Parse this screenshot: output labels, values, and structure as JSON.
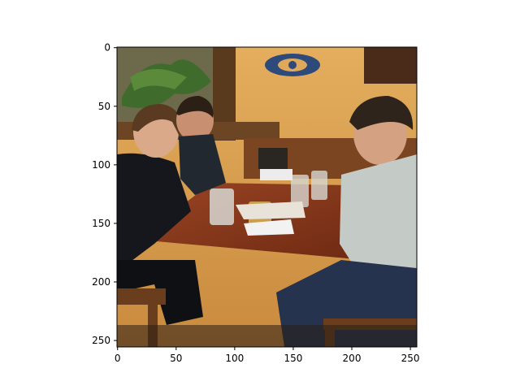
{
  "figure": {
    "image_description_icon": "photo-restaurant-table-icon",
    "x_ticks": [
      "0",
      "50",
      "100",
      "150",
      "200",
      "250"
    ],
    "y_ticks": [
      "0",
      "50",
      "100",
      "150",
      "200",
      "250"
    ],
    "x_tick_values": [
      0,
      50,
      100,
      150,
      200,
      250
    ],
    "y_tick_values": [
      0,
      50,
      100,
      150,
      200,
      250
    ],
    "x_range": [
      -0.5,
      255.5
    ],
    "y_range": [
      255.5,
      -0.5
    ],
    "colors": {
      "wall": "#e0a85a",
      "table": "#8a3a1c",
      "frame": "#000000"
    }
  }
}
